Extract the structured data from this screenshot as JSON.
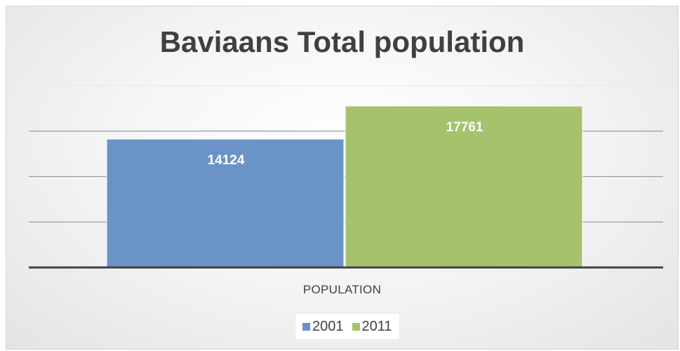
{
  "chart_data": {
    "type": "bar",
    "title": "Baviaans Total population",
    "categories": [
      "POPULATION"
    ],
    "series": [
      {
        "name": "2001",
        "values": [
          14124
        ],
        "color": "#6a93c8"
      },
      {
        "name": "2011",
        "values": [
          17761
        ],
        "color": "#a5c36c"
      }
    ],
    "data_labels": [
      "14124",
      "17761"
    ],
    "ylim": [
      0,
      20000
    ],
    "grid": true,
    "legend_position": "bottom",
    "xlabel": "",
    "ylabel": ""
  }
}
